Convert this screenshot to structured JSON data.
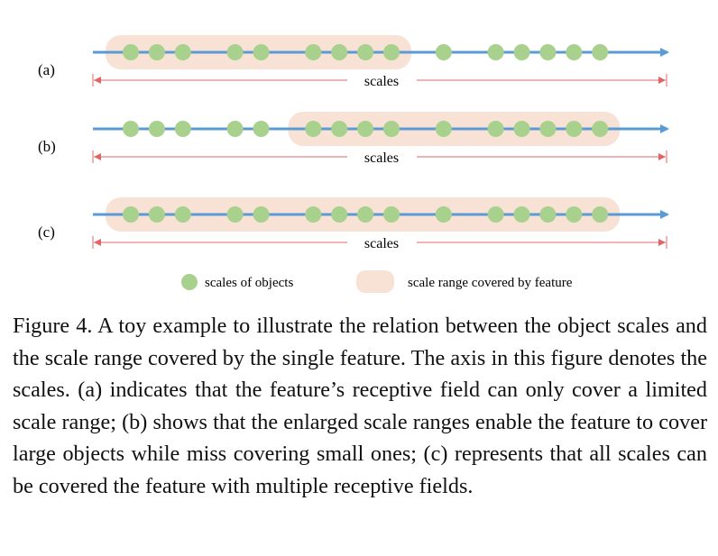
{
  "figure": {
    "rows": [
      {
        "id": "a",
        "label": "(a)",
        "scale_label": "scales",
        "object_scales": [
          1,
          2,
          3,
          5,
          6,
          8,
          9,
          10,
          11,
          13,
          15,
          16,
          17,
          18,
          19
        ],
        "covered_range": [
          1,
          11
        ]
      },
      {
        "id": "b",
        "label": "(b)",
        "scale_label": "scales",
        "object_scales": [
          1,
          2,
          3,
          5,
          6,
          8,
          9,
          10,
          11,
          13,
          15,
          16,
          17,
          18,
          19
        ],
        "covered_range": [
          8,
          19
        ]
      },
      {
        "id": "c",
        "label": "(c)",
        "scale_label": "scales",
        "object_scales": [
          1,
          2,
          3,
          5,
          6,
          8,
          9,
          10,
          11,
          13,
          15,
          16,
          17,
          18,
          19
        ],
        "covered_range": [
          1,
          19
        ]
      }
    ],
    "legend": {
      "objects_label": "scales of objects",
      "range_label": "scale range covered by feature"
    },
    "colors": {
      "axis": "#5b9bd5",
      "dot": "#a9d18e",
      "range": "#f8e2d6",
      "scale_arrow": "#e06666"
    }
  },
  "caption": "Figure 4. A toy example to illustrate the relation between the object scales and the scale range covered by the single feature. The axis in this figure denotes the scales. (a) indicates that the feature’s receptive field can only cover a limited scale range; (b) shows that the enlarged scale ranges enable the feature to cover large objects while miss covering small ones; (c) represents that all scales can be covered the feature with multiple receptive fields."
}
